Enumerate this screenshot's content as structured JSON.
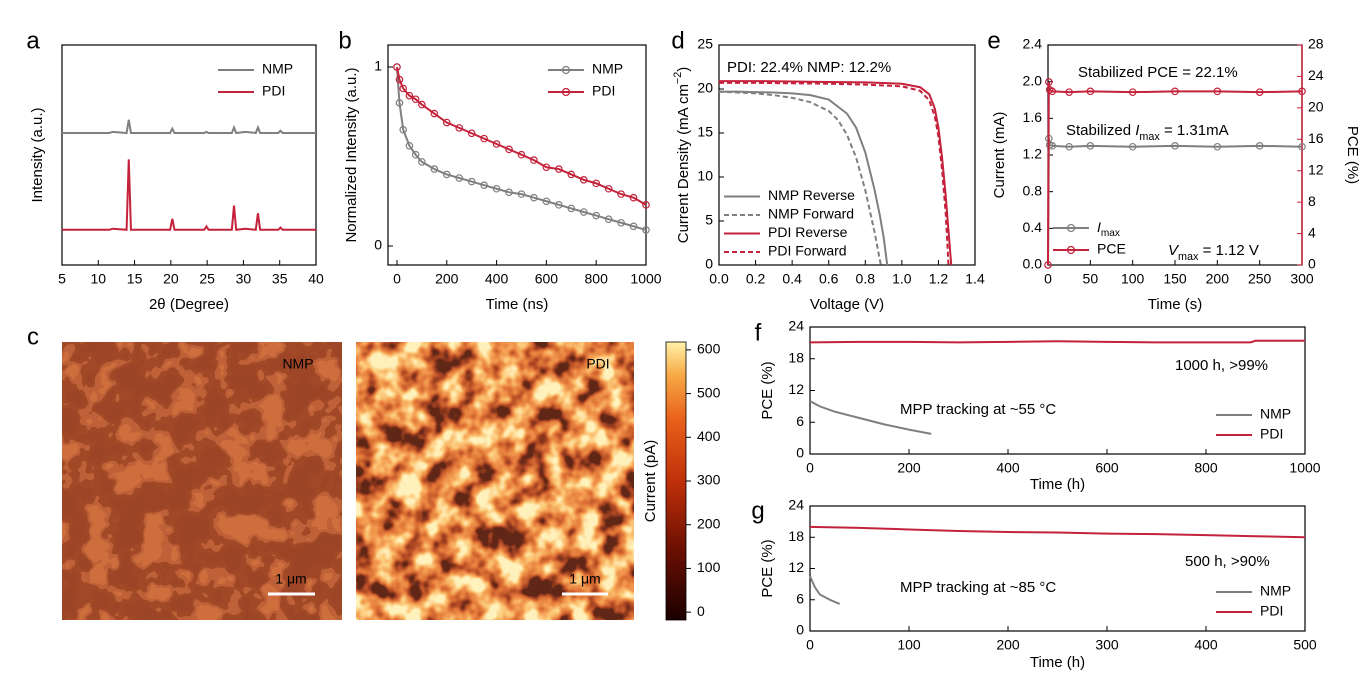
{
  "chart_data": [
    {
      "label": "a",
      "type": "line",
      "xlabel": "2θ (Degree)",
      "ylabel": "Intensity (a.u.)",
      "xlim": [
        5,
        40
      ],
      "xticks": [
        5,
        10,
        15,
        20,
        25,
        30,
        35,
        40
      ],
      "ylim": [
        0,
        1
      ],
      "legend": "upper right",
      "x": [
        5,
        11.5,
        12,
        13.9,
        14.2,
        14.5,
        16,
        19.9,
        20.2,
        20.5,
        24.6,
        24.9,
        25.2,
        28.4,
        28.7,
        29,
        30.3,
        31.7,
        32,
        32.3,
        34.8,
        35.1,
        35.4,
        40
      ],
      "series": [
        {
          "name": "NMP",
          "color": "#7f7f7f",
          "values": [
            0.6,
            0.6,
            0.605,
            0.6,
            0.66,
            0.6,
            0.6,
            0.6,
            0.62,
            0.6,
            0.6,
            0.605,
            0.6,
            0.6,
            0.625,
            0.6,
            0.605,
            0.6,
            0.625,
            0.6,
            0.6,
            0.61,
            0.6,
            0.6
          ]
        },
        {
          "name": "PDI",
          "color": "#c4213a",
          "values": [
            0.16,
            0.16,
            0.165,
            0.16,
            0.48,
            0.16,
            0.16,
            0.16,
            0.21,
            0.16,
            0.16,
            0.175,
            0.16,
            0.16,
            0.27,
            0.16,
            0.165,
            0.16,
            0.235,
            0.16,
            0.16,
            0.17,
            0.16,
            0.16
          ]
        }
      ]
    },
    {
      "label": "b",
      "type": "line",
      "markers": true,
      "xlabel": "Time (ns)",
      "ylabel": "Normalized Intensity (a.u.)",
      "xlim": [
        -36,
        1000
      ],
      "xticks": [
        0,
        200,
        400,
        600,
        800,
        1000
      ],
      "ylim": [
        -0.106,
        1.123
      ],
      "yticks": [
        0,
        1
      ],
      "legend": "upper right",
      "x": [
        0,
        10,
        25,
        50,
        75,
        100,
        150,
        200,
        250,
        300,
        350,
        400,
        450,
        500,
        550,
        600,
        650,
        700,
        750,
        800,
        850,
        900,
        950,
        1000
      ],
      "series": [
        {
          "name": "NMP",
          "color": "#7f7f7f",
          "values": [
            1,
            0.8,
            0.65,
            0.56,
            0.51,
            0.47,
            0.43,
            0.4,
            0.38,
            0.36,
            0.34,
            0.32,
            0.3,
            0.29,
            0.27,
            0.25,
            0.23,
            0.21,
            0.19,
            0.17,
            0.15,
            0.13,
            0.11,
            0.09
          ]
        },
        {
          "name": "PDI",
          "color": "#c4213a",
          "values": [
            1,
            0.93,
            0.88,
            0.84,
            0.82,
            0.79,
            0.74,
            0.69,
            0.66,
            0.63,
            0.6,
            0.57,
            0.54,
            0.51,
            0.48,
            0.44,
            0.43,
            0.4,
            0.37,
            0.35,
            0.32,
            0.29,
            0.27,
            0.23
          ]
        }
      ]
    },
    {
      "label": "c",
      "type": "image",
      "images": [
        {
          "name": "NMP",
          "scale_bar": "1 μm"
        },
        {
          "name": "PDI",
          "scale_bar": "1 μm"
        }
      ],
      "colorbar": {
        "label": "Current (pA)",
        "lim": [
          -18,
          618
        ],
        "ticks": [
          0,
          100,
          200,
          300,
          400,
          500,
          600
        ]
      }
    },
    {
      "label": "d",
      "type": "line",
      "xlabel": "Voltage (V)",
      "ylabel": [
        "Current Density (mA cm",
        {
          "text": "−2",
          "style": "sup"
        },
        ")"
      ],
      "annotations": [
        {
          "text": "PDI: 22.4% NMP: 12.2%",
          "color": "#000000"
        }
      ],
      "xlim": [
        0,
        1.4
      ],
      "xticks": [
        {
          "value": 0,
          "label": "0.0"
        },
        0.2,
        0.4,
        0.6,
        0.8,
        {
          "value": 1,
          "label": "1.0"
        },
        1.2,
        1.4
      ],
      "ylim": [
        0,
        25
      ],
      "yticks": [
        0,
        5,
        10,
        15,
        20,
        25
      ],
      "legend": "lower left",
      "series": [
        {
          "name": "NMP Reverse",
          "color": "#7f7f7f",
          "dash": false,
          "x": [
            0,
            0.1,
            0.2,
            0.3,
            0.4,
            0.5,
            0.6,
            0.7,
            0.75,
            0.8,
            0.85,
            0.88,
            0.9,
            0.92
          ],
          "values": [
            19.7,
            19.7,
            19.65,
            19.6,
            19.5,
            19.3,
            18.8,
            17.2,
            15.6,
            12.8,
            8.6,
            5.6,
            3.2,
            0
          ]
        },
        {
          "name": "NMP Forward",
          "color": "#7f7f7f",
          "dash": true,
          "x": [
            0,
            0.1,
            0.2,
            0.3,
            0.4,
            0.5,
            0.6,
            0.65,
            0.7,
            0.75,
            0.8,
            0.85,
            0.885
          ],
          "values": [
            19.7,
            19.6,
            19.5,
            19.3,
            19.0,
            18.5,
            17.5,
            16.5,
            14.8,
            12.2,
            8.5,
            3.8,
            0
          ]
        },
        {
          "name": "PDI Reverse",
          "color": "#c4213a",
          "dash": false,
          "x": [
            0,
            0.2,
            0.4,
            0.6,
            0.8,
            1.0,
            1.1,
            1.15,
            1.18,
            1.2,
            1.22,
            1.24,
            1.26,
            1.27
          ],
          "values": [
            20.9,
            20.9,
            20.85,
            20.8,
            20.75,
            20.6,
            20.2,
            19.4,
            17.8,
            15.6,
            12.2,
            7.8,
            2.6,
            0
          ]
        },
        {
          "name": "PDI Forward",
          "color": "#c4213a",
          "dash": true,
          "x": [
            0,
            0.2,
            0.4,
            0.6,
            0.8,
            1.0,
            1.1,
            1.15,
            1.18,
            1.2,
            1.22,
            1.24,
            1.255
          ],
          "values": [
            20.7,
            20.7,
            20.65,
            20.6,
            20.5,
            20.3,
            19.8,
            18.7,
            16.9,
            14.6,
            10.8,
            5.8,
            0
          ]
        }
      ]
    },
    {
      "label": "e",
      "type": "line",
      "markers": true,
      "xlabel": "Time (s)",
      "ylabel": "Current (mA)",
      "y2label": "PCE (%)",
      "annotations": [
        {
          "text": "Stabilized PCE = 22.1%",
          "color": "#c4213a"
        },
        {
          "text": [
            "Stabilized ",
            {
              "text": "I",
              "style": "italic"
            },
            {
              "text": "max",
              "style": "sub"
            },
            " = 1.31mA"
          ],
          "color": "#7f7f7f"
        },
        {
          "text": [
            {
              "text": "V",
              "style": "italic"
            },
            {
              "text": "max",
              "style": "sub"
            },
            " = 1.12 V"
          ],
          "color": "#000000"
        }
      ],
      "xlim": [
        0,
        300
      ],
      "xticks": [
        0,
        50,
        100,
        150,
        200,
        250,
        300
      ],
      "ylim": [
        0,
        2.4
      ],
      "yticks": [
        {
          "value": 0,
          "label": "0.0"
        },
        0.4,
        0.8,
        1.2,
        1.6,
        {
          "value": 2,
          "label": "2.0"
        },
        2.4
      ],
      "y2lim": [
        0,
        28
      ],
      "y2ticks": [
        0,
        4,
        8,
        12,
        16,
        20,
        24,
        28
      ],
      "legend": "lower left",
      "x": [
        0,
        1,
        2,
        5,
        25,
        50,
        100,
        150,
        200,
        250,
        300
      ],
      "series": [
        {
          "name": [
            {
              "text": "I",
              "style": "italic"
            },
            {
              "text": "max",
              "style": "sub"
            }
          ],
          "color": "#7f7f7f",
          "values": [
            0,
            1.38,
            1.31,
            1.3,
            1.29,
            1.3,
            1.29,
            1.3,
            1.29,
            1.3,
            1.29
          ]
        },
        {
          "name": "PCE",
          "color": "#c4213a",
          "axis": "y2",
          "values": [
            0,
            23.3,
            22.3,
            22.1,
            22.0,
            22.1,
            22.0,
            22.1,
            22.1,
            22.0,
            22.1
          ]
        }
      ]
    },
    {
      "label": "f",
      "type": "line",
      "xlabel": "Time (h)",
      "ylabel": "PCE (%)",
      "annotations": [
        {
          "text": "1000 h, >99%",
          "color": "#000000"
        },
        {
          "text": "MPP tracking at ~55 °C",
          "color": "#000000"
        }
      ],
      "xlim": [
        0,
        1000
      ],
      "xticks": [
        0,
        200,
        400,
        600,
        800,
        1000
      ],
      "ylim": [
        0,
        24
      ],
      "yticks": [
        0,
        6,
        12,
        18,
        24
      ],
      "legend": "lower right",
      "series": [
        {
          "name": "NMP",
          "color": "#7f7f7f",
          "x": [
            0,
            20,
            50,
            100,
            150,
            200,
            245
          ],
          "values": [
            10,
            9,
            8,
            6.8,
            5.6,
            4.6,
            3.8
          ]
        },
        {
          "name": "PDI",
          "color": "#c4213a",
          "x": [
            0,
            100,
            200,
            300,
            400,
            500,
            600,
            700,
            800,
            890,
            900,
            1000
          ],
          "values": [
            21.1,
            21.2,
            21.2,
            21.1,
            21.2,
            21.3,
            21.2,
            21.1,
            21.1,
            21.1,
            21.4,
            21.4
          ]
        }
      ]
    },
    {
      "label": "g",
      "type": "line",
      "xlabel": "Time (h)",
      "ylabel": "PCE (%)",
      "annotations": [
        {
          "text": "500 h, >90%",
          "color": "#000000"
        },
        {
          "text": "MPP tracking at ~85 °C",
          "color": "#000000"
        }
      ],
      "xlim": [
        0,
        500
      ],
      "xticks": [
        0,
        100,
        200,
        300,
        400,
        500
      ],
      "ylim": [
        0,
        24
      ],
      "yticks": [
        0,
        6,
        12,
        18,
        24
      ],
      "legend": "lower right",
      "series": [
        {
          "name": "NMP",
          "color": "#7f7f7f",
          "x": [
            0,
            5,
            10,
            20,
            30
          ],
          "values": [
            10.5,
            8.4,
            7.0,
            6.0,
            5.2
          ]
        },
        {
          "name": "PDI",
          "color": "#c4213a",
          "x": [
            0,
            50,
            100,
            150,
            200,
            250,
            300,
            350,
            400,
            450,
            500
          ],
          "values": [
            20,
            19.8,
            19.5,
            19.2,
            19,
            18.9,
            18.7,
            18.6,
            18.4,
            18.2,
            18.0
          ]
        }
      ]
    }
  ]
}
